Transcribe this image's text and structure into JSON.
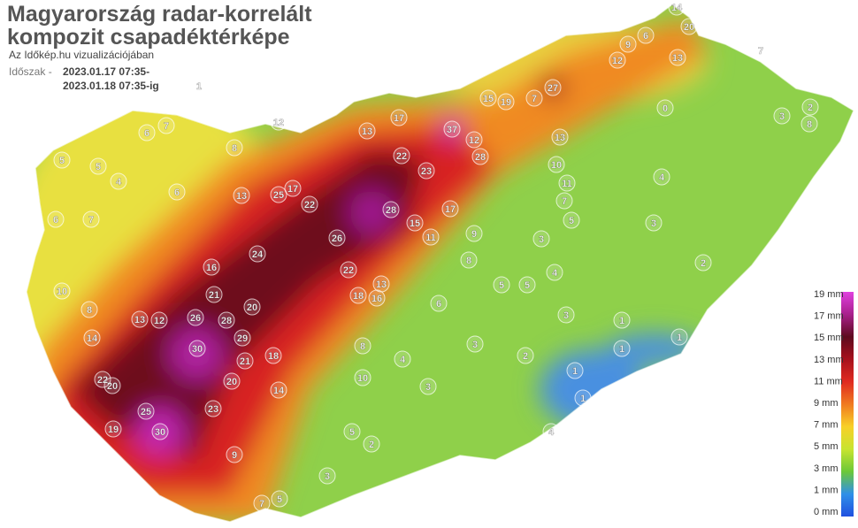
{
  "header": {
    "title_line1": "Magyarország radar-korrelált",
    "title_line2": "kompozit csapadéktérképe",
    "subtitle": "Az Időkép.hu vizualizációjában"
  },
  "period": {
    "label": "Időszak -",
    "from": "2023.01.17 07:35-",
    "to": "2023.01.18 07:35-ig"
  },
  "legend": {
    "items": [
      {
        "label": "19 mm",
        "color": "#e040e0"
      },
      {
        "label": "17 mm",
        "color": "#a8208c"
      },
      {
        "label": "15 mm",
        "color": "#5e0a1e"
      },
      {
        "label": "13 mm",
        "color": "#a8101c"
      },
      {
        "label": "11 mm",
        "color": "#e02a20"
      },
      {
        "label": "9 mm",
        "color": "#f07a20"
      },
      {
        "label": "7 mm",
        "color": "#f8d028"
      },
      {
        "label": "5 mm",
        "color": "#c8e430"
      },
      {
        "label": "3 mm",
        "color": "#6cc838"
      },
      {
        "label": "1 mm",
        "color": "#3090e8"
      },
      {
        "label": "0 mm",
        "color": "#2050e0"
      }
    ]
  },
  "stations": {
    "values": [
      37,
      27,
      30,
      29,
      30,
      20,
      28,
      23,
      22,
      17,
      13,
      12,
      28,
      14,
      20,
      13,
      12,
      7,
      8,
      3,
      2,
      0,
      4,
      3,
      2,
      1,
      1,
      1,
      1,
      1,
      4,
      2,
      3,
      6,
      5,
      8,
      10,
      4,
      3,
      5,
      2,
      3,
      5,
      7,
      9,
      19,
      20,
      22,
      25,
      23,
      21,
      18,
      14,
      18,
      22,
      26,
      22,
      25,
      17,
      13,
      16,
      24,
      20,
      21,
      28,
      26,
      13,
      12,
      14,
      10,
      8,
      7,
      6,
      4,
      5,
      6,
      7,
      12,
      8,
      6,
      5,
      1,
      9,
      6,
      15,
      19,
      7,
      13,
      10,
      11,
      7,
      5,
      3,
      4,
      3,
      5,
      8,
      9,
      17,
      15,
      11,
      16,
      13
    ]
  }
}
